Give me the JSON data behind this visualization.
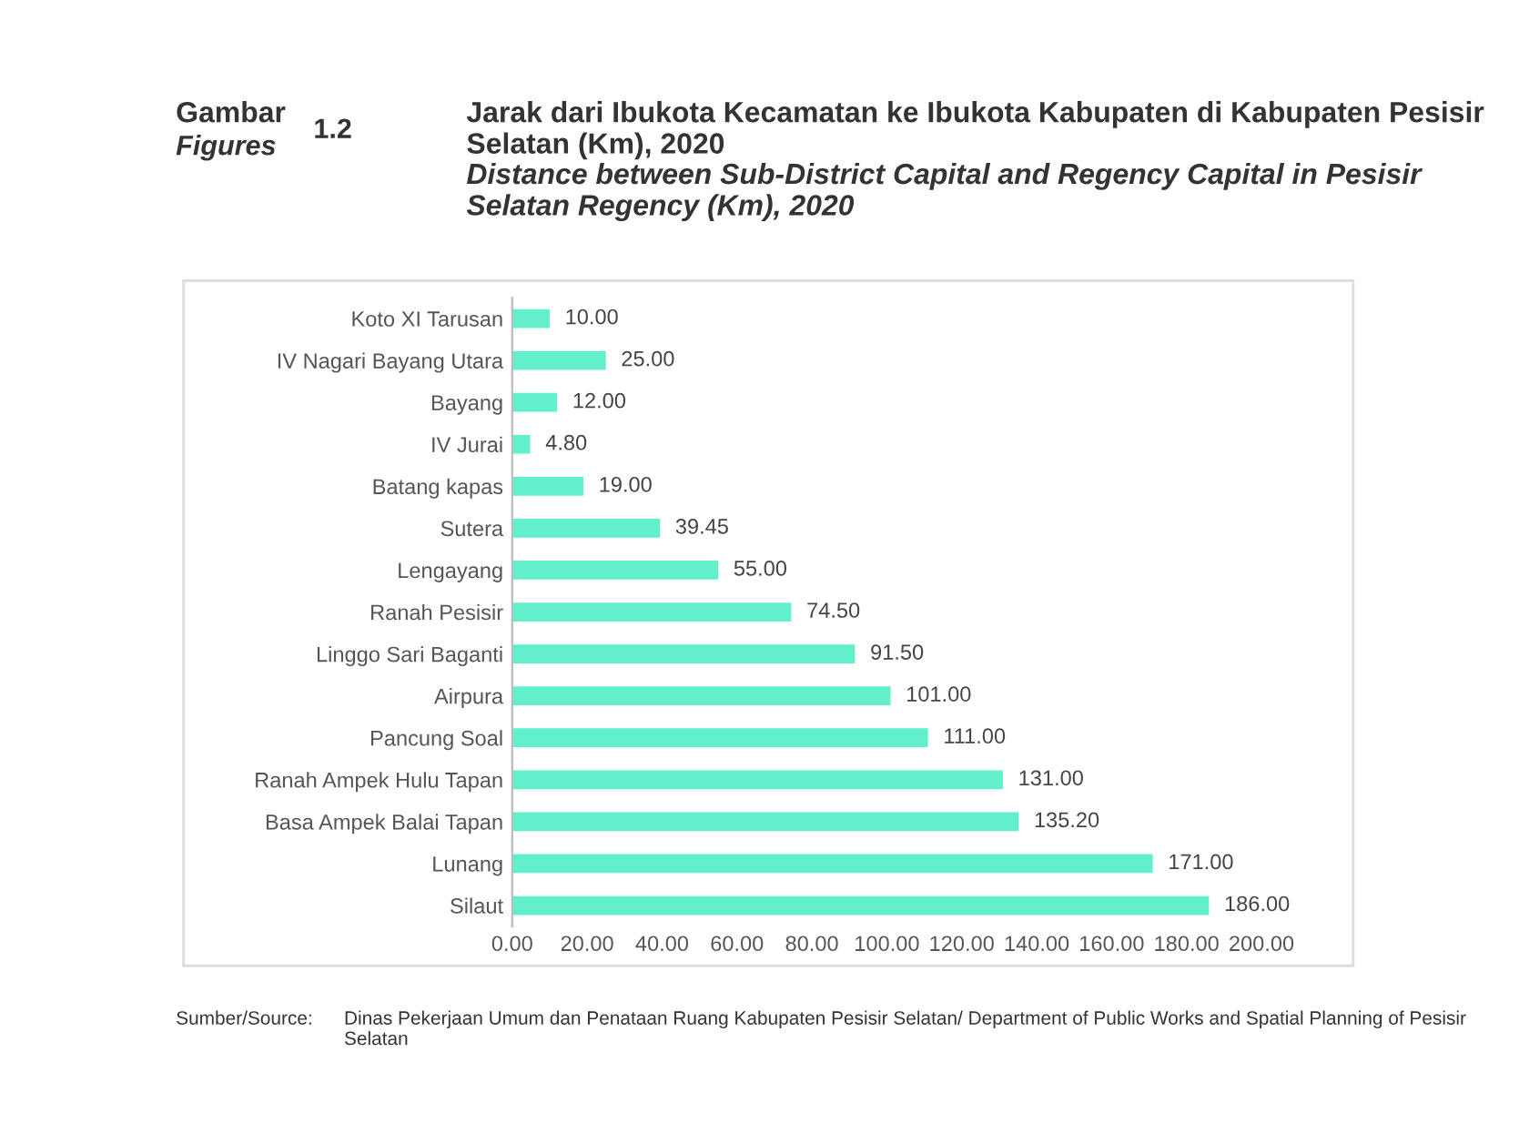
{
  "chart_data": {
    "type": "bar",
    "orientation": "horizontal",
    "title": "Jarak dari Ibukota Kecamatan ke Ibukota Kabupaten di Kabupaten Pesisir Selatan (Km), 2020",
    "subtitle": "Distance between Sub-District Capital and Regency Capital in Pesisir Selatan Regency (Km), 2020",
    "annotations": [
      "Gambar",
      "Figures",
      "1.2",
      "Sumber/Source:",
      "Dinas Pekerjaan Umum dan Penataan Ruang Kabupaten Pesisir Selatan/ Department of Public Works and Spatial Planning of Pesisir Selatan"
    ],
    "categories": [
      "Koto XI Tarusan",
      "IV Nagari Bayang Utara",
      "Bayang",
      "IV Jurai",
      "Batang kapas",
      "Sutera",
      "Lengayang",
      "Ranah Pesisir",
      "Linggo Sari Baganti",
      "Airpura",
      "Pancung Soal",
      "Ranah Ampek Hulu Tapan",
      "Basa Ampek Balai Tapan",
      "Lunang",
      "Silaut"
    ],
    "values": [
      10.0,
      25.0,
      12.0,
      4.8,
      19.0,
      39.45,
      55.0,
      74.5,
      91.5,
      101.0,
      111.0,
      131.0,
      135.2,
      171.0,
      186.0
    ],
    "value_labels": [
      "10.00",
      "25.00",
      "12.00",
      "4.80",
      "19.00",
      "39.45",
      "55.00",
      "74.50",
      "91.50",
      "101.00",
      "111.00",
      "131.00",
      "135.20",
      "171.00",
      "186.00"
    ],
    "color": "#62f0cc",
    "xlim": [
      0,
      200
    ],
    "xticks": [
      {
        "value": 0,
        "label": "0.00"
      },
      {
        "value": 20,
        "label": "20.00"
      },
      {
        "value": 40,
        "label": "40.00"
      },
      {
        "value": 60,
        "label": "60.00"
      },
      {
        "value": 80,
        "label": "80.00"
      },
      {
        "value": 100,
        "label": "100.00"
      },
      {
        "value": 120,
        "label": "120.00"
      },
      {
        "value": 140,
        "label": "140.00"
      },
      {
        "value": 160,
        "label": "160.00"
      },
      {
        "value": 180,
        "label": "180.00"
      },
      {
        "value": 200,
        "label": "200.00"
      }
    ],
    "grid": false,
    "legend": false
  }
}
